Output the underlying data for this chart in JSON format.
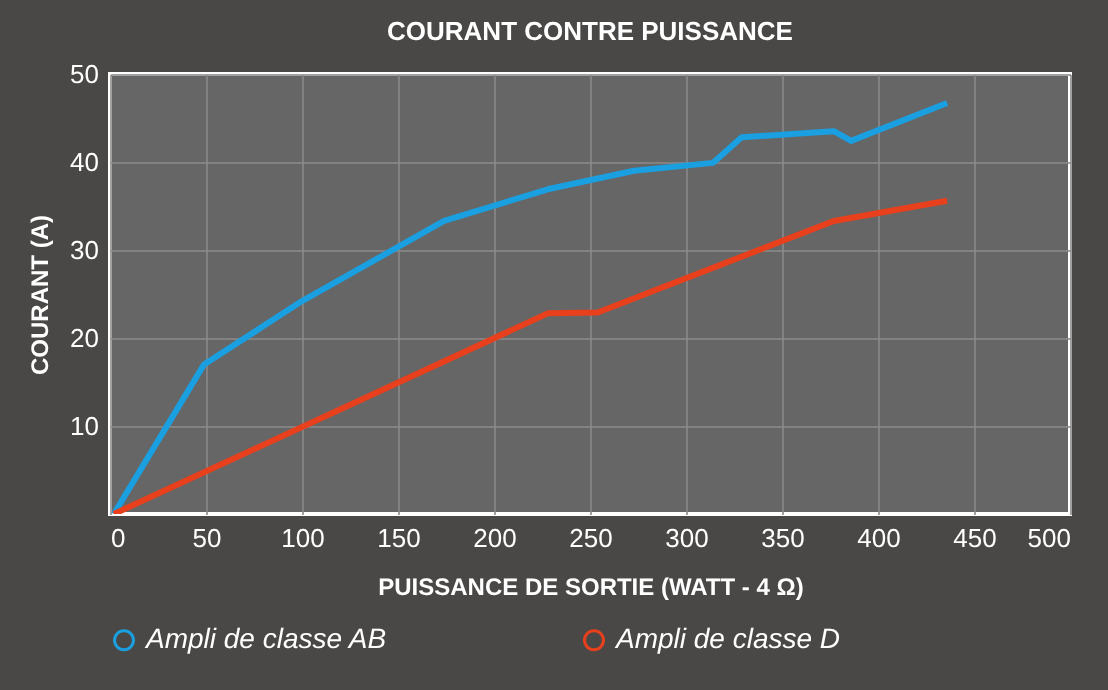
{
  "chart_data": {
    "type": "line",
    "title": "COURANT CONTRE PUISSANCE",
    "xlabel": "PUISSANCE DE SORTIE (WATT - 4 Ω)",
    "ylabel": "COURANT (A)",
    "xlim": [
      0,
      500
    ],
    "xticks": [
      0,
      50,
      100,
      150,
      200,
      250,
      300,
      350,
      400,
      450,
      500
    ],
    "ylim": [
      0,
      50
    ],
    "yticks": [
      10,
      20,
      30,
      40,
      50
    ],
    "grid": true,
    "legend": "bottom",
    "line_style": "solid",
    "series": [
      {
        "name": "Ampli de classe AB",
        "color": "#1a9fe0",
        "x": [
          2,
          49,
          100,
          174,
          228,
          273,
          314,
          329,
          377,
          386,
          436
        ],
        "values": [
          0,
          17,
          24.2,
          33.3,
          36.9,
          39,
          39.9,
          42.8,
          43.5,
          42.4,
          46.7
        ]
      },
      {
        "name": "Ampli de classe D",
        "color": "#e8401c",
        "x": [
          2,
          228,
          254,
          377,
          436
        ],
        "values": [
          0,
          22.8,
          22.9,
          33.3,
          35.6
        ]
      }
    ]
  }
}
